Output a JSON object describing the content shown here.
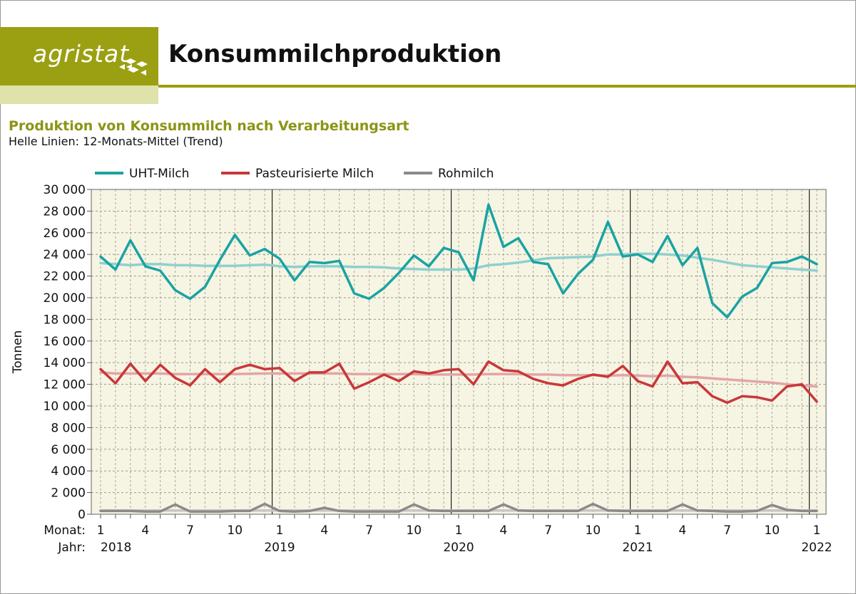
{
  "brand": {
    "logo_text": "agristat",
    "color": "#9aa011",
    "light_color": "#dfe2aa"
  },
  "page_title": "Konsummilchproduktion",
  "chart_data": {
    "type": "line",
    "title": "Produktion von Konsummilch nach Verarbeitungsart",
    "subtitle": "Helle Linien: 12-Monats-Mittel (Trend)",
    "ylabel": "Tonnen",
    "xlabel_month_prefix": "Monat:",
    "xlabel_year_prefix": "Jahr:",
    "ylim": [
      0,
      30000
    ],
    "yticks": [
      0,
      2000,
      4000,
      6000,
      8000,
      10000,
      12000,
      14000,
      16000,
      18000,
      20000,
      22000,
      24000,
      26000,
      28000,
      30000
    ],
    "ytick_labels": [
      "0",
      "2 000",
      "4 000",
      "6 000",
      "8 000",
      "10 000",
      "12 000",
      "14 000",
      "16 000",
      "18 000",
      "20 000",
      "22 000",
      "24 000",
      "26 000",
      "28 000",
      "30 000"
    ],
    "x_start": "2018-01",
    "x_end": "2022-01",
    "month_tick_labels": [
      "1",
      "4",
      "7",
      "10"
    ],
    "years": [
      "2018",
      "2019",
      "2020",
      "2021",
      "2022"
    ],
    "grid": true,
    "legend_position": "top",
    "background_color": "#f6f4e3",
    "series": [
      {
        "name": "UHT-Milch",
        "color": "#1aa3a3",
        "values": [
          23800,
          22600,
          25300,
          22900,
          22500,
          20700,
          19900,
          21000,
          23500,
          25800,
          23900,
          24500,
          23600,
          21600,
          23300,
          23200,
          23400,
          20400,
          19900,
          20900,
          22300,
          23900,
          22900,
          24600,
          24200,
          21600,
          28600,
          24700,
          25500,
          23300,
          23100,
          20400,
          22200,
          23500,
          27000,
          23800,
          24000,
          23300,
          25700,
          23000,
          24600,
          19500,
          18200,
          20100,
          20900,
          23200,
          23300,
          23800,
          23100
        ]
      },
      {
        "name": "UHT-Milch (Trend)",
        "color": "#8fd0d0",
        "values": [
          23200,
          23100,
          23000,
          23100,
          23100,
          23000,
          23000,
          22950,
          22950,
          22950,
          23000,
          23050,
          22900,
          22850,
          22900,
          22900,
          22900,
          22850,
          22850,
          22800,
          22700,
          22650,
          22600,
          22600,
          22600,
          22700,
          23000,
          23100,
          23250,
          23450,
          23650,
          23700,
          23750,
          23800,
          24000,
          24000,
          24050,
          24050,
          24000,
          23900,
          23700,
          23500,
          23250,
          23000,
          22900,
          22800,
          22700,
          22600,
          22500
        ]
      },
      {
        "name": "Pasteurisierte Milch",
        "color": "#c8383a",
        "values": [
          13400,
          12100,
          13900,
          12300,
          13800,
          12600,
          11900,
          13400,
          12200,
          13400,
          13800,
          13400,
          13500,
          12300,
          13100,
          13100,
          13900,
          11600,
          12200,
          12900,
          12300,
          13200,
          13000,
          13300,
          13400,
          12000,
          14100,
          13300,
          13200,
          12500,
          12100,
          11900,
          12500,
          12900,
          12700,
          13700,
          12300,
          11800,
          14100,
          12100,
          12200,
          10900,
          10300,
          10900,
          10800,
          10500,
          11800,
          12000,
          10400
        ]
      },
      {
        "name": "Pasteurisierte Milch (Trend)",
        "color": "#e3a5a6",
        "values": [
          13100,
          13000,
          13000,
          13000,
          13000,
          12950,
          12950,
          12950,
          12950,
          12950,
          12980,
          13000,
          13000,
          13000,
          13000,
          13000,
          13000,
          12950,
          12950,
          12950,
          12950,
          12950,
          12900,
          12900,
          12900,
          12900,
          12950,
          12950,
          12950,
          12900,
          12900,
          12850,
          12850,
          12850,
          12800,
          12850,
          12800,
          12750,
          12800,
          12700,
          12650,
          12550,
          12450,
          12350,
          12250,
          12150,
          12000,
          11900,
          11800
        ]
      },
      {
        "name": "Rohmilch",
        "color": "#8c8a89",
        "values": [
          300,
          300,
          300,
          250,
          250,
          900,
          250,
          250,
          250,
          300,
          300,
          950,
          300,
          250,
          300,
          600,
          300,
          250,
          250,
          250,
          250,
          900,
          350,
          300,
          300,
          300,
          300,
          900,
          350,
          300,
          300,
          300,
          300,
          950,
          350,
          300,
          300,
          300,
          300,
          900,
          350,
          300,
          250,
          250,
          300,
          850,
          400,
          300,
          300
        ]
      },
      {
        "name": "Rohmilch (Trend)",
        "color": "#c8c6c5",
        "values": [
          350,
          350,
          350,
          350,
          350,
          350,
          350,
          350,
          350,
          350,
          350,
          350,
          350,
          350,
          350,
          350,
          350,
          350,
          350,
          350,
          350,
          350,
          350,
          350,
          350,
          350,
          350,
          350,
          350,
          350,
          350,
          350,
          350,
          350,
          350,
          350,
          350,
          350,
          350,
          350,
          350,
          350,
          350,
          350,
          350,
          350,
          350,
          350,
          350
        ]
      }
    ],
    "legend": [
      "UHT-Milch",
      "Pasteurisierte Milch",
      "Rohmilch"
    ]
  }
}
